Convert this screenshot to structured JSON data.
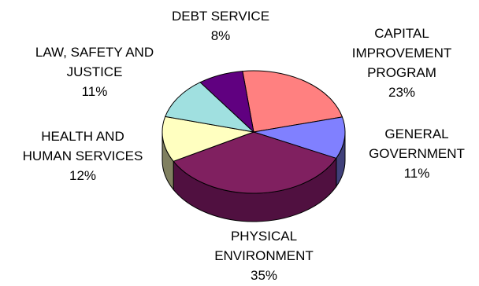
{
  "chart_data": {
    "type": "pie",
    "title": "",
    "slices": [
      {
        "label": "CAPITAL IMPROVEMENT PROGRAM",
        "value": 23,
        "pct_label": "23%",
        "color": "#FF8080",
        "side": "#B25A5A",
        "lines": [
          "CAPITAL",
          "IMPROVEMENT",
          "PROGRAM"
        ]
      },
      {
        "label": "GENERAL GOVERNMENT",
        "value": 11,
        "pct_label": "11%",
        "color": "#8080FF",
        "side": "#40407A",
        "lines": [
          "GENERAL",
          "GOVERNMENT"
        ]
      },
      {
        "label": "PHYSICAL ENVIRONMENT",
        "value": 35,
        "pct_label": "35%",
        "color": "#802060",
        "side": "#501040",
        "lines": [
          "PHYSICAL",
          "ENVIRONMENT"
        ]
      },
      {
        "label": "HEALTH AND HUMAN SERVICES",
        "value": 12,
        "pct_label": "12%",
        "color": "#FFFFC0",
        "side": "#808060",
        "lines": [
          "HEALTH AND",
          "HUMAN SERVICES"
        ]
      },
      {
        "label": "LAW, SAFETY AND JUSTICE",
        "value": 11,
        "pct_label": "11%",
        "color": "#A0E0E0",
        "side": "#507070",
        "lines": [
          "LAW, SAFETY AND",
          "JUSTICE"
        ]
      },
      {
        "label": "DEBT SERVICE",
        "value": 8,
        "pct_label": "8%",
        "color": "#600080",
        "side": "#300040",
        "lines": [
          "DEBT SERVICE"
        ]
      }
    ],
    "style": "3d-pie",
    "outline_color": "#000000"
  }
}
